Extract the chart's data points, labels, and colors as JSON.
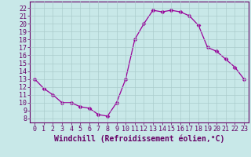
{
  "x": [
    0,
    1,
    2,
    3,
    4,
    5,
    6,
    7,
    8,
    9,
    10,
    11,
    12,
    13,
    14,
    15,
    16,
    17,
    18,
    19,
    20,
    21,
    22,
    23
  ],
  "y": [
    13.0,
    11.8,
    11.0,
    10.0,
    10.0,
    9.5,
    9.3,
    8.5,
    8.3,
    10.0,
    13.0,
    18.0,
    20.0,
    21.7,
    21.5,
    21.7,
    21.5,
    21.0,
    19.8,
    17.0,
    16.5,
    15.5,
    14.5,
    13.0
  ],
  "line_color": "#990099",
  "marker": "D",
  "marker_size": 2.5,
  "bg_color": "#c8e8e8",
  "grid_color": "#aacccc",
  "xlabel": "Windchill (Refroidissement éolien,°C)",
  "ylabel_ticks": [
    8,
    9,
    10,
    11,
    12,
    13,
    14,
    15,
    16,
    17,
    18,
    19,
    20,
    21,
    22
  ],
  "xlim": [
    -0.5,
    23.5
  ],
  "ylim": [
    7.5,
    22.8
  ],
  "xticks": [
    0,
    1,
    2,
    3,
    4,
    5,
    6,
    7,
    8,
    9,
    10,
    11,
    12,
    13,
    14,
    15,
    16,
    17,
    18,
    19,
    20,
    21,
    22,
    23
  ],
  "axis_color": "#660066",
  "tick_fontsize": 6.0,
  "xlabel_fontsize": 7.0,
  "linewidth": 0.9
}
